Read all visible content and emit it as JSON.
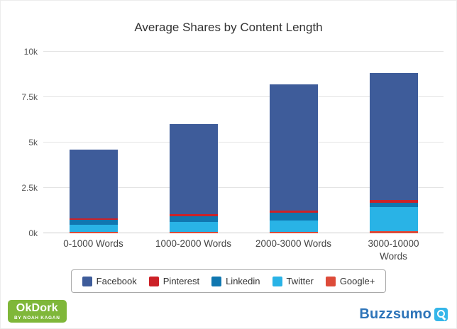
{
  "chart_data": {
    "type": "bar",
    "stacked": true,
    "title": "Average Shares by Content Length",
    "categories": [
      "0-1000 Words",
      "1000-2000 Words",
      "2000-3000 Words",
      "3000-10000 Words"
    ],
    "series": [
      {
        "name": "Facebook",
        "color": "#3e5c9a",
        "values": [
          3770,
          4960,
          6960,
          7020
        ]
      },
      {
        "name": "Pinterest",
        "color": "#cc2127",
        "values": [
          80,
          100,
          110,
          150
        ]
      },
      {
        "name": "Linkedin",
        "color": "#1077b0",
        "values": [
          270,
          330,
          420,
          250
        ]
      },
      {
        "name": "Twitter",
        "color": "#29b3e6",
        "values": [
          420,
          550,
          640,
          1300
        ]
      },
      {
        "name": "Google+",
        "color": "#dd4b39",
        "values": [
          60,
          60,
          70,
          130
        ]
      }
    ],
    "totals": [
      4600,
      6000,
      8200,
      8850
    ],
    "ylim": [
      0,
      10000
    ],
    "yticks": [
      {
        "value": 0,
        "label": "0k"
      },
      {
        "value": 2500,
        "label": "2.5k"
      },
      {
        "value": 5000,
        "label": "5k"
      },
      {
        "value": 7500,
        "label": "7.5k"
      },
      {
        "value": 10000,
        "label": "10k"
      }
    ],
    "grid": true,
    "legend_position": "bottom",
    "stack_order": "bottom-to-top is reverse of legend order"
  },
  "footer": {
    "okdork": {
      "title": "OkDork",
      "subtitle": "BY NOAH KAGAN",
      "bg_color": "#7fb739",
      "text_color": "#ffffff"
    },
    "buzzsumo": {
      "title": "Buzzsumo",
      "text_color": "#2d74b9",
      "icon_color": "#35b6e9"
    }
  }
}
